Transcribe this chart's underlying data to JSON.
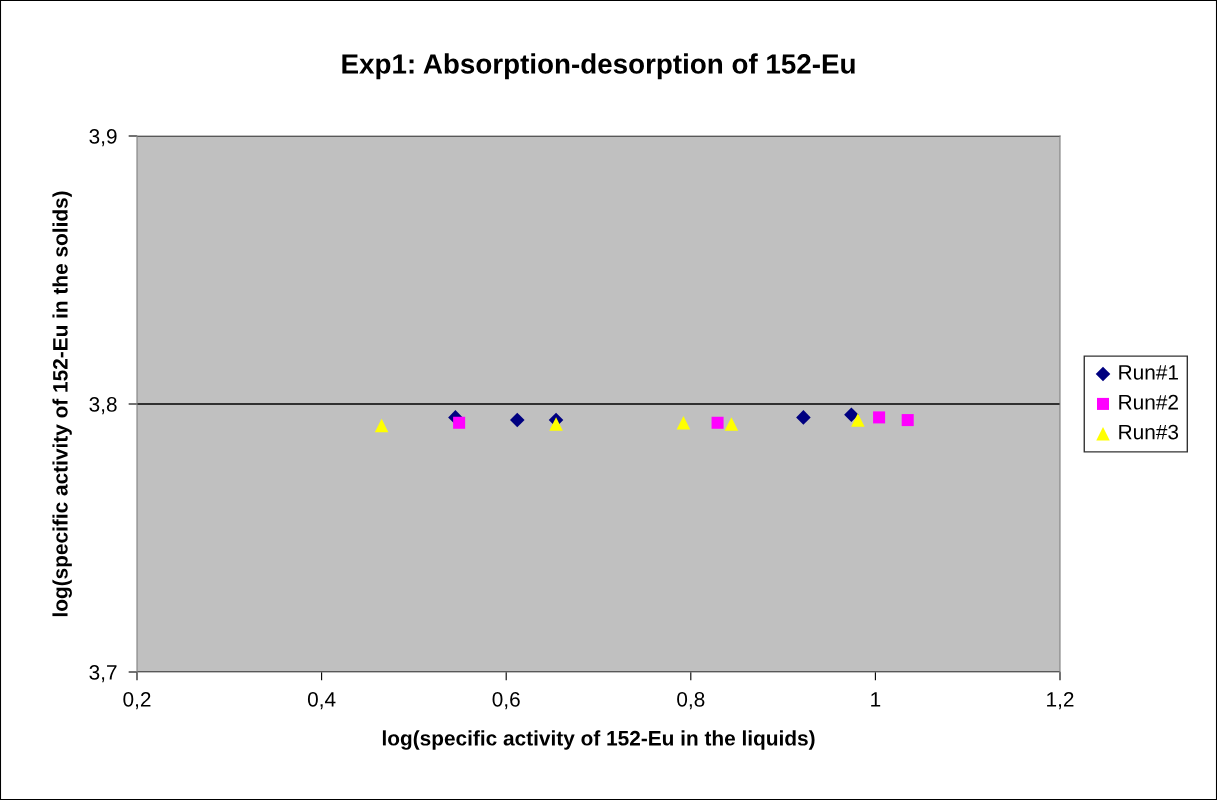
{
  "chart_data": {
    "type": "scatter",
    "title": "Exp1: Absorption-desorption of 152-Eu",
    "xlabel": "log(specific activity of 152-Eu in the liquids)",
    "ylabel": "log(specific activity of 152-Eu in the solids)",
    "xlim": [
      0.2,
      1.2
    ],
    "xticks": [
      {
        "value": 0.2,
        "label": "0,2"
      },
      {
        "value": 0.4,
        "label": "0,4"
      },
      {
        "value": 0.6,
        "label": "0,6"
      },
      {
        "value": 0.8,
        "label": "0,8"
      },
      {
        "value": 1,
        "label": "1"
      },
      {
        "value": 1.2,
        "label": "1,2"
      }
    ],
    "ylim": [
      3.7,
      3.9
    ],
    "yticks": [
      {
        "value": 3.7,
        "label": "3,7"
      },
      {
        "value": 3.8,
        "label": "3,8"
      },
      {
        "value": 3.9,
        "label": "3,9"
      }
    ],
    "grid": "y",
    "legend": "right",
    "series": [
      {
        "name": "Run#1",
        "color": "#000080",
        "marker": "diamond",
        "x": [
          0.545,
          0.612,
          0.654,
          0.922,
          0.974
        ],
        "values": [
          3.795,
          3.794,
          3.794,
          3.795,
          3.796
        ]
      },
      {
        "name": "Run#2",
        "color": "#ff00ff",
        "marker": "square",
        "x": [
          0.549,
          0.829,
          1.004,
          1.035
        ],
        "values": [
          3.793,
          3.793,
          3.795,
          3.794
        ]
      },
      {
        "name": "Run#3",
        "color": "#ffff00",
        "marker": "triangle",
        "x": [
          0.465,
          0.654,
          0.792,
          0.844,
          0.981
        ],
        "values": [
          3.792,
          3.7925,
          3.793,
          3.7925,
          3.794
        ]
      }
    ]
  }
}
